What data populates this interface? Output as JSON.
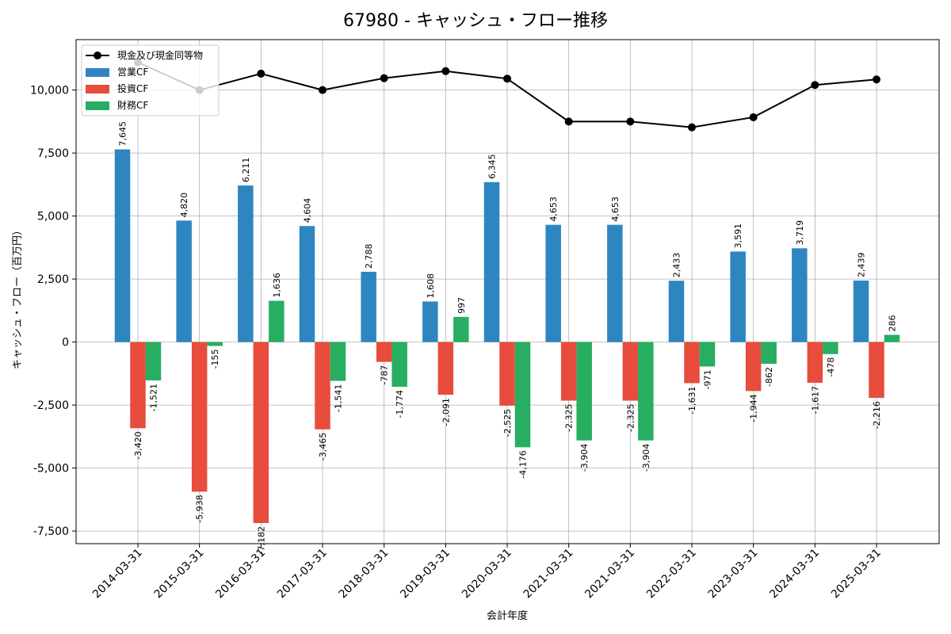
{
  "chart_data": {
    "type": "bar",
    "title": "67980 - キャッシュ・フロー推移",
    "xlabel": "会計年度",
    "ylabel": "キャッシュ・フロー（百万円）",
    "ylim": [
      -8000,
      12000
    ],
    "yticks": [
      -7500,
      -5000,
      -2500,
      0,
      2500,
      5000,
      7500,
      10000
    ],
    "ytick_labels": [
      "-7,500",
      "-5,000",
      "-2,500",
      "0",
      "2,500",
      "5,000",
      "7,500",
      "10,000"
    ],
    "grid": true,
    "legend_position": "top-left",
    "categories": [
      "2014-03-31",
      "2015-03-31",
      "2016-03-31",
      "2017-03-31",
      "2018-03-31",
      "2019-03-31",
      "2020-03-31",
      "2021-03-31",
      "2021-03-31",
      "2022-03-31",
      "2023-03-31",
      "2024-03-31",
      "2025-03-31"
    ],
    "series": [
      {
        "name": "営業CF",
        "kind": "bar",
        "color": "#2e86c1",
        "values": [
          7645,
          4820,
          6211,
          4604,
          2788,
          1608,
          6345,
          4653,
          4653,
          2433,
          3591,
          3719,
          2439
        ],
        "labels": [
          "7,645",
          "4,820",
          "6,211",
          "4,604",
          "2,788",
          "1,608",
          "6,345",
          "4,653",
          "4,653",
          "2,433",
          "3,591",
          "3,719",
          "2,439"
        ]
      },
      {
        "name": "投資CF",
        "kind": "bar",
        "color": "#e74c3c",
        "values": [
          -3420,
          -5938,
          -7182,
          -3465,
          -787,
          -2091,
          -2525,
          -2325,
          -2325,
          -1631,
          -1944,
          -1617,
          -2216
        ],
        "labels": [
          "-3,420",
          "-5,938",
          "-7,182",
          "-3,465",
          "-787",
          "-2,091",
          "-2,525",
          "-2,325",
          "-2,325",
          "-1,631",
          "-1,944",
          "-1,617",
          "-2,216"
        ]
      },
      {
        "name": "財務CF",
        "kind": "bar",
        "color": "#27ae60",
        "values": [
          -1521,
          -155,
          1636,
          -1541,
          -1774,
          997,
          -4176,
          -3904,
          -3904,
          -971,
          -862,
          -478,
          286
        ],
        "labels": [
          "-1,521",
          "-155",
          "1,636",
          "-1,541",
          "-1,774",
          "997",
          "-4,176",
          "-3,904",
          "-3,904",
          "-971",
          "-862",
          "-478",
          "286"
        ]
      },
      {
        "name": "現金及び現金同等物",
        "kind": "line",
        "color": "#000000",
        "values": [
          11100,
          10000,
          10650,
          10000,
          10470,
          10750,
          10450,
          8750,
          8750,
          8520,
          8920,
          10200,
          10420
        ]
      }
    ]
  }
}
